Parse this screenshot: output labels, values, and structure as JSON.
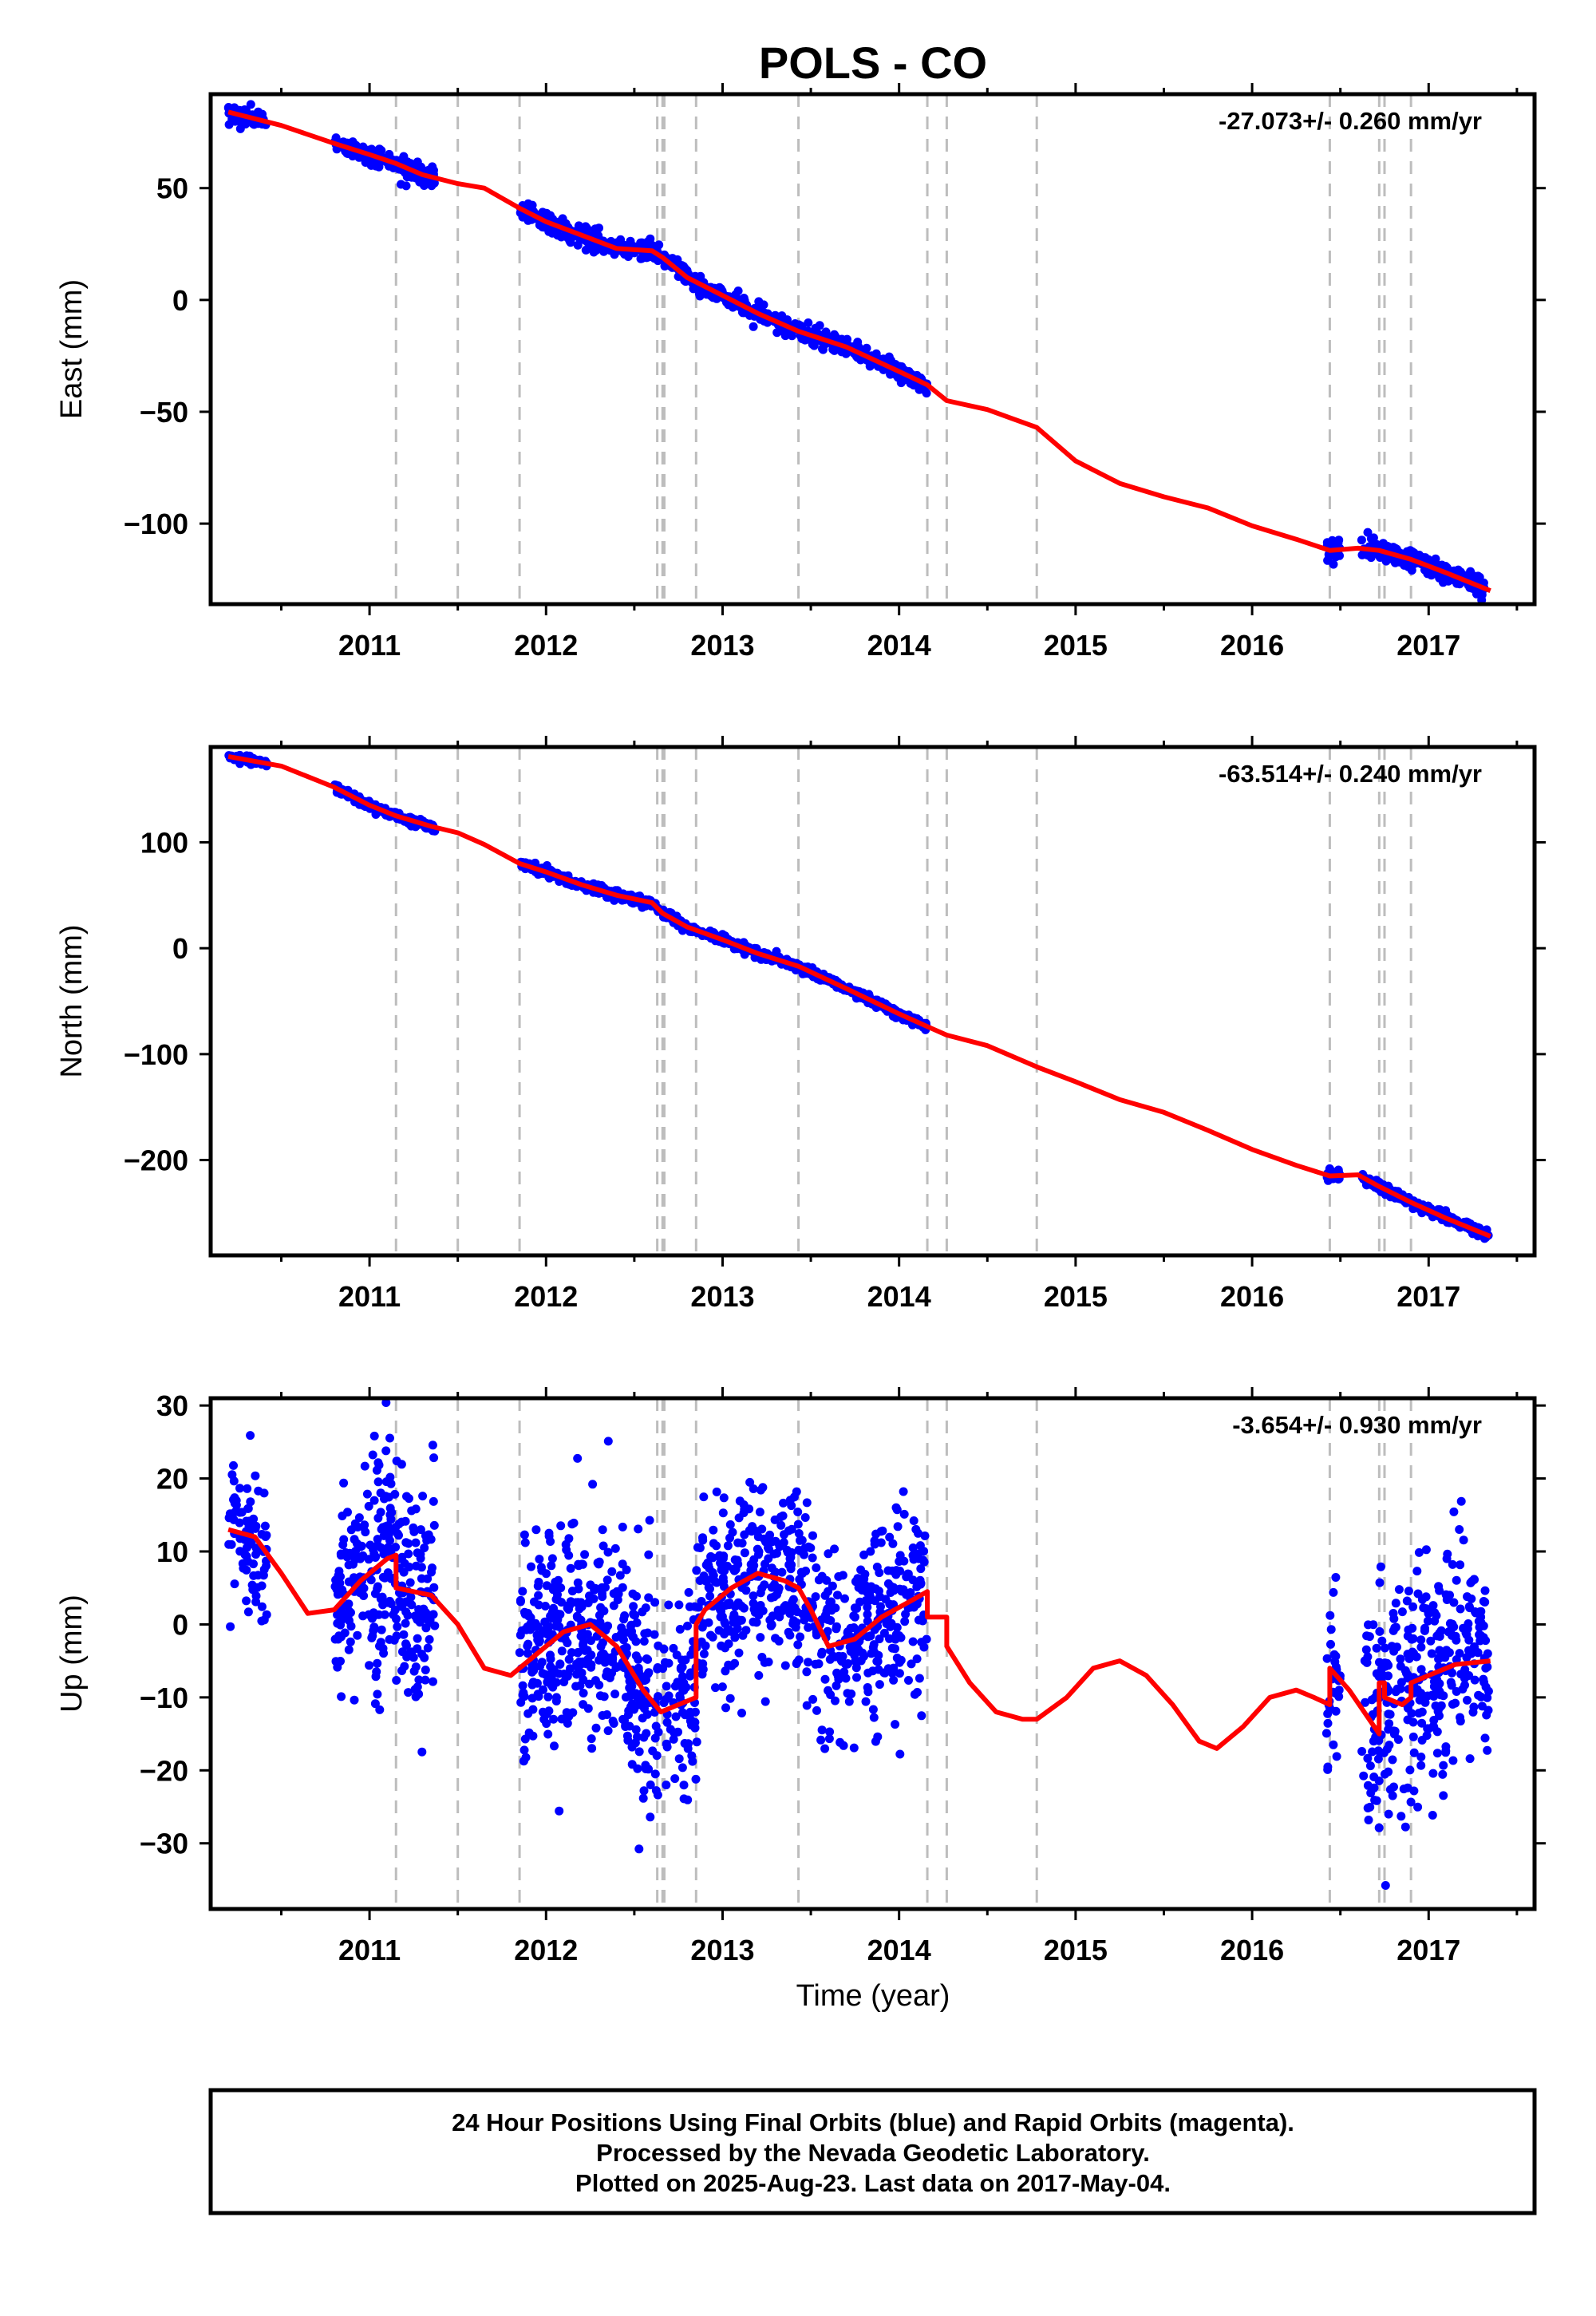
{
  "figure": {
    "title": "POLS - CO",
    "x_axis_label": "Time (year)",
    "footer_lines": [
      "24 Hour Positions Using Final Orbits (blue) and Rapid Orbits (magenta).",
      "Processed by the Nevada Geodetic Laboratory.",
      "Plotted on 2025-Aug-23. Last data on 2017-May-04."
    ]
  },
  "colors": {
    "points": "#0000ff",
    "fit": "#ff0000",
    "event_lines": "#bdbdbd",
    "frame": "#000000"
  },
  "chart_data": [
    {
      "type": "scatter",
      "title": "East",
      "ylabel": "East (mm)",
      "rate_label": "-27.073+/- 0.260 mm/yr",
      "xlim": [
        2010.1,
        2017.6
      ],
      "ylim": [
        -136,
        92
      ],
      "x_ticks": [
        "2011",
        "2012",
        "2013",
        "2014",
        "2015",
        "2016",
        "2017"
      ],
      "y_ticks": [
        "50",
        "0",
        "−50",
        "−100"
      ],
      "y_tick_values": [
        50,
        0,
        -50,
        -100
      ],
      "event_lines_x": [
        2011.15,
        2011.5,
        2011.85,
        2012.63,
        2012.66,
        2012.67,
        2012.85,
        2013.43,
        2014.16,
        2014.27,
        2014.78,
        2016.44,
        2016.72,
        2016.75,
        2016.9
      ],
      "fit_line": {
        "x": [
          2010.2,
          2010.5,
          2010.8,
          2011.0,
          2011.15,
          2011.3,
          2011.5,
          2011.65,
          2011.85,
          2012.0,
          2012.2,
          2012.4,
          2012.6,
          2012.66,
          2012.8,
          2013.0,
          2013.2,
          2013.43,
          2013.7,
          2014.0,
          2014.16,
          2014.27,
          2014.5,
          2014.78,
          2015.0,
          2015.25,
          2015.5,
          2015.75,
          2016.0,
          2016.25,
          2016.44,
          2016.6,
          2016.72,
          2016.9,
          2017.1,
          2017.35
        ],
        "y": [
          84,
          78,
          70,
          65,
          61,
          56,
          52,
          50,
          41,
          35,
          29,
          23,
          22,
          19,
          10,
          2,
          -6,
          -14,
          -21,
          -32,
          -38,
          -45,
          -49,
          -57,
          -72,
          -82,
          -88,
          -93,
          -101,
          -107,
          -112,
          -111,
          -112,
          -116,
          -122,
          -130
        ]
      },
      "segments": [
        {
          "x0": 2010.2,
          "x1": 2010.42,
          "n": 60,
          "sigma": 2.0
        },
        {
          "x0": 2010.8,
          "x1": 2011.37,
          "n": 180,
          "sigma": 2.0
        },
        {
          "x0": 2011.85,
          "x1": 2012.64,
          "n": 260,
          "sigma": 2.2
        },
        {
          "x0": 2012.66,
          "x1": 2014.16,
          "n": 480,
          "sigma": 1.8
        },
        {
          "x0": 2016.42,
          "x1": 2016.5,
          "n": 25,
          "sigma": 3.0
        },
        {
          "x0": 2016.62,
          "x1": 2017.34,
          "n": 240,
          "sigma": 2.2
        }
      ]
    },
    {
      "type": "scatter",
      "title": "North",
      "ylabel": "North (mm)",
      "rate_label": "-63.514+/- 0.240 mm/yr",
      "xlim": [
        2010.1,
        2017.6
      ],
      "ylim": [
        -290,
        190
      ],
      "x_ticks": [
        "2011",
        "2012",
        "2013",
        "2014",
        "2015",
        "2016",
        "2017"
      ],
      "y_ticks": [
        "100",
        "0",
        "−100",
        "−200"
      ],
      "y_tick_values": [
        100,
        0,
        -100,
        -200
      ],
      "event_lines_x": [
        2011.15,
        2011.5,
        2011.85,
        2012.63,
        2012.66,
        2012.67,
        2012.85,
        2013.43,
        2014.16,
        2014.27,
        2014.78,
        2016.44,
        2016.72,
        2016.75,
        2016.9
      ],
      "fit_line": {
        "x": [
          2010.2,
          2010.5,
          2010.8,
          2011.0,
          2011.15,
          2011.35,
          2011.5,
          2011.65,
          2011.85,
          2012.0,
          2012.2,
          2012.4,
          2012.6,
          2012.66,
          2012.8,
          2013.0,
          2013.2,
          2013.43,
          2013.7,
          2014.0,
          2014.16,
          2014.27,
          2014.5,
          2014.78,
          2015.0,
          2015.25,
          2015.5,
          2015.75,
          2016.0,
          2016.25,
          2016.44,
          2016.6,
          2016.72,
          2016.9,
          2017.1,
          2017.35
        ],
        "y": [
          181,
          172,
          152,
          135,
          125,
          115,
          109,
          98,
          80,
          72,
          60,
          50,
          43,
          33,
          20,
          8,
          -5,
          -17,
          -38,
          -62,
          -74,
          -82,
          -92,
          -112,
          -126,
          -143,
          -155,
          -172,
          -190,
          -205,
          -215,
          -214,
          -225,
          -240,
          -255,
          -272
        ]
      },
      "segments": [
        {
          "x0": 2010.2,
          "x1": 2010.42,
          "n": 60,
          "sigma": 1.8
        },
        {
          "x0": 2010.8,
          "x1": 2011.37,
          "n": 180,
          "sigma": 2.0
        },
        {
          "x0": 2011.85,
          "x1": 2012.64,
          "n": 260,
          "sigma": 2.0
        },
        {
          "x0": 2012.66,
          "x1": 2014.16,
          "n": 480,
          "sigma": 2.0
        },
        {
          "x0": 2016.42,
          "x1": 2016.5,
          "n": 25,
          "sigma": 2.5
        },
        {
          "x0": 2016.62,
          "x1": 2017.34,
          "n": 240,
          "sigma": 2.5
        }
      ]
    },
    {
      "type": "scatter",
      "title": "Up",
      "ylabel": "Up (mm)",
      "rate_label": "-3.654+/- 0.930 mm/yr",
      "xlim": [
        2010.1,
        2017.6
      ],
      "ylim": [
        -39,
        31
      ],
      "x_ticks": [
        "2011",
        "2012",
        "2013",
        "2014",
        "2015",
        "2016",
        "2017"
      ],
      "y_ticks": [
        "30",
        "20",
        "10",
        "0",
        "−10",
        "−20",
        "−30"
      ],
      "y_tick_values": [
        30,
        20,
        10,
        0,
        -10,
        -20,
        -30
      ],
      "event_lines_x": [
        2011.15,
        2011.5,
        2011.85,
        2012.63,
        2012.66,
        2012.67,
        2012.85,
        2013.43,
        2014.16,
        2014.27,
        2014.78,
        2016.44,
        2016.72,
        2016.75,
        2016.9
      ],
      "fit_line": {
        "x": [
          2010.2,
          2010.35,
          2010.5,
          2010.65,
          2010.8,
          2010.95,
          2011.1,
          2011.15,
          2011.15,
          2011.35,
          2011.5,
          2011.65,
          2011.8,
          2011.95,
          2012.1,
          2012.25,
          2012.4,
          2012.55,
          2012.65,
          2012.65,
          2012.75,
          2012.85,
          2012.85,
          2012.9,
          2013.05,
          2013.2,
          2013.35,
          2013.43,
          2013.5,
          2013.6,
          2013.75,
          2013.9,
          2014.05,
          2014.16,
          2014.16,
          2014.27,
          2014.27,
          2014.4,
          2014.55,
          2014.7,
          2014.78,
          2014.95,
          2015.1,
          2015.25,
          2015.4,
          2015.55,
          2015.7,
          2015.8,
          2015.95,
          2016.1,
          2016.25,
          2016.35,
          2016.44,
          2016.44,
          2016.55,
          2016.72,
          2016.72,
          2016.75,
          2016.75,
          2016.85,
          2016.9,
          2016.9,
          2017.0,
          2017.15,
          2017.35
        ],
        "y": [
          13,
          12,
          7,
          1.5,
          2,
          6,
          9,
          9.5,
          5,
          4,
          0,
          -6,
          -7,
          -4,
          -1,
          0,
          -3,
          -9,
          -12,
          -12,
          -11,
          -10,
          0,
          2,
          5,
          7,
          6,
          5,
          2,
          -3,
          -2,
          1,
          3,
          4.5,
          1,
          1,
          -3,
          -8,
          -12,
          -13,
          -13,
          -10,
          -6,
          -5,
          -7,
          -11,
          -16,
          -17,
          -14,
          -10,
          -9,
          -10,
          -11,
          -6,
          -9,
          -15,
          -8,
          -8,
          -10,
          -11,
          -10,
          -8,
          -7,
          -5.5,
          -5
        ]
      },
      "segments": [
        {
          "x0": 2010.2,
          "x1": 2010.42,
          "n": 80,
          "sigma": 5.0
        },
        {
          "x0": 2010.8,
          "x1": 2011.37,
          "n": 300,
          "sigma": 7.5
        },
        {
          "x0": 2011.85,
          "x1": 2012.64,
          "n": 420,
          "sigma": 7.5
        },
        {
          "x0": 2012.66,
          "x1": 2014.16,
          "n": 650,
          "sigma": 6.5
        },
        {
          "x0": 2016.42,
          "x1": 2016.5,
          "n": 30,
          "sigma": 7.0
        },
        {
          "x0": 2016.62,
          "x1": 2017.34,
          "n": 330,
          "sigma": 7.5
        }
      ]
    }
  ]
}
